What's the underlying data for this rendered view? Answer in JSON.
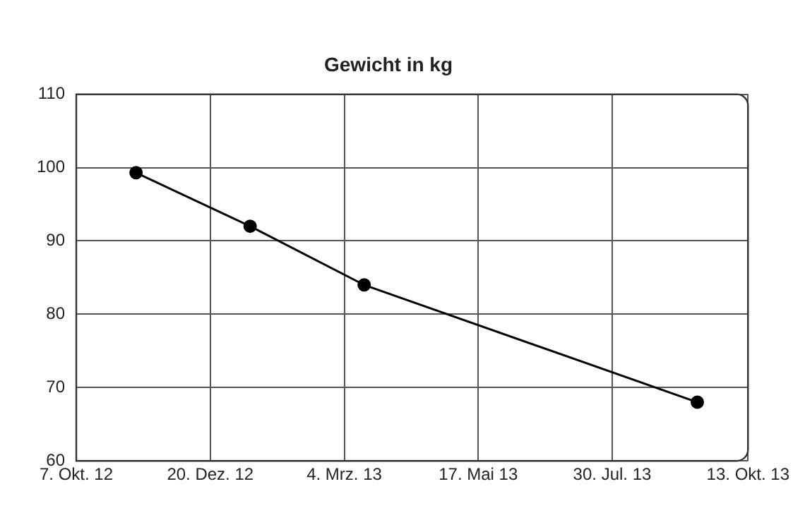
{
  "chart_data": {
    "type": "line",
    "title": "Gewicht in kg",
    "x": [
      "2012-11-09",
      "2013-01-11",
      "2013-03-15",
      "2013-09-15"
    ],
    "series": [
      {
        "color": "#000000",
        "values": [
          99.3,
          92,
          84,
          68
        ]
      }
    ],
    "xlim": [
      "2012-10-07",
      "2013-10-13"
    ],
    "xticks": [
      {
        "value": "2012-10-07",
        "label": "7. Okt. 12"
      },
      {
        "value": "2012-12-20",
        "label": "20. Dez. 12"
      },
      {
        "value": "2013-03-04",
        "label": "4. Mrz. 13"
      },
      {
        "value": "2013-05-17",
        "label": "17. Mai 13"
      },
      {
        "value": "2013-07-30",
        "label": "30. Jul. 13"
      },
      {
        "value": "2013-10-13",
        "label": "13. Okt. 13"
      }
    ],
    "ylim": [
      60,
      110
    ],
    "yticks": [
      60,
      70,
      80,
      90,
      100,
      110
    ],
    "grid": true,
    "legend": false,
    "marker": "circle",
    "line_style": "solid"
  }
}
